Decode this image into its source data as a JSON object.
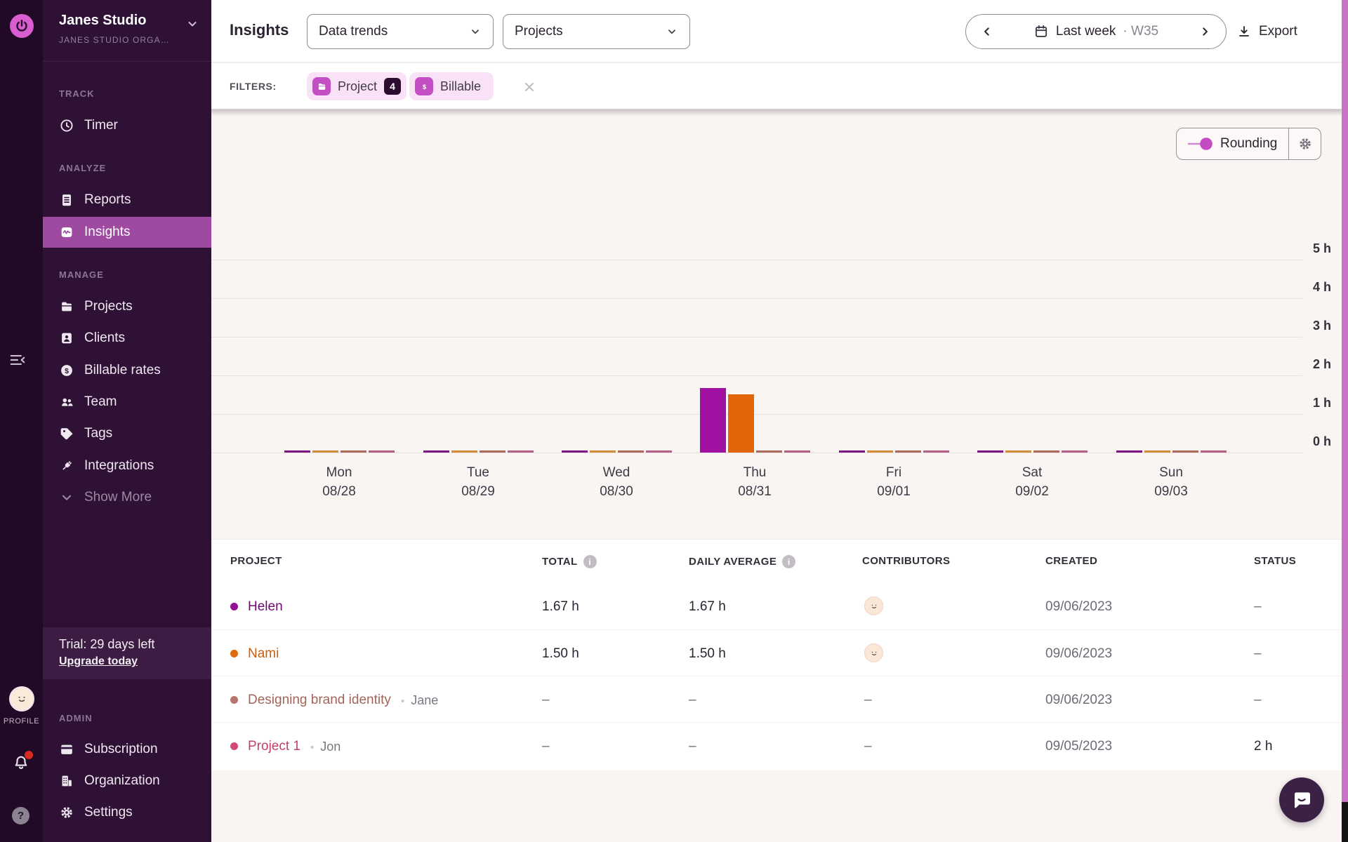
{
  "rail": {
    "profile_label": "PROFILE"
  },
  "sidebar": {
    "workspace_name": "Janes Studio",
    "workspace_org": "JANES STUDIO ORGA…",
    "sections": [
      {
        "label": "TRACK",
        "items": [
          {
            "label": "Timer"
          }
        ]
      },
      {
        "label": "ANALYZE",
        "items": [
          {
            "label": "Reports"
          },
          {
            "label": "Insights"
          }
        ]
      },
      {
        "label": "MANAGE",
        "items": [
          {
            "label": "Projects"
          },
          {
            "label": "Clients"
          },
          {
            "label": "Billable rates"
          },
          {
            "label": "Team"
          },
          {
            "label": "Tags"
          },
          {
            "label": "Integrations"
          },
          {
            "label": "Show More"
          }
        ]
      }
    ],
    "trial": {
      "text": "Trial: 29 days left",
      "link": "Upgrade today"
    },
    "admin": {
      "label": "ADMIN",
      "items": [
        {
          "label": "Subscription"
        },
        {
          "label": "Organization"
        },
        {
          "label": "Settings"
        }
      ]
    }
  },
  "header": {
    "title": "Insights",
    "view_dropdown": "Data trends",
    "grouping_dropdown": "Projects",
    "date_range_label": "Last week",
    "week_label": "· W35",
    "export_label": "Export"
  },
  "filters": {
    "label": "FILTERS:",
    "chips": [
      {
        "label": "Project",
        "count": "4"
      },
      {
        "label": "Billable"
      }
    ]
  },
  "chart_controls": {
    "rounding_label": "Rounding",
    "rounding_enabled": true
  },
  "chart_data": {
    "type": "bar",
    "unit": "h",
    "categories": [
      {
        "day": "Mon",
        "date": "08/28"
      },
      {
        "day": "Tue",
        "date": "08/29"
      },
      {
        "day": "Wed",
        "date": "08/30"
      },
      {
        "day": "Thu",
        "date": "08/31"
      },
      {
        "day": "Fri",
        "date": "09/01"
      },
      {
        "day": "Sat",
        "date": "09/02"
      },
      {
        "day": "Sun",
        "date": "09/03"
      }
    ],
    "series": [
      {
        "name": "Helen",
        "color": "#a011a1",
        "stub_color": "#7c1581",
        "values": [
          0,
          0,
          0,
          1.67,
          0,
          0,
          0
        ]
      },
      {
        "name": "Nami",
        "color": "#e2650a",
        "stub_color": "#d18a38",
        "values": [
          0,
          0,
          0,
          1.5,
          0,
          0,
          0
        ]
      },
      {
        "name": "Designing brand identity",
        "color": "#ab6a59",
        "stub_color": "#ab6a59",
        "values": [
          0,
          0,
          0,
          0,
          0,
          0,
          0
        ]
      },
      {
        "name": "Project 1",
        "color": "#b15f85",
        "stub_color": "#b15f85",
        "values": [
          0,
          0,
          0,
          0,
          0,
          0,
          0
        ]
      }
    ],
    "yticks": [
      "0 h",
      "1 h",
      "2 h",
      "3 h",
      "4 h",
      "5 h"
    ],
    "ylim": [
      0,
      5
    ],
    "grid": true,
    "legend": false
  },
  "table": {
    "columns": [
      {
        "label": "PROJECT"
      },
      {
        "label": "TOTAL",
        "info": true
      },
      {
        "label": "DAILY AVERAGE",
        "info": true
      },
      {
        "label": "CONTRIBUTORS"
      },
      {
        "label": "CREATED"
      },
      {
        "label": "STATUS"
      }
    ],
    "rows": [
      {
        "name": "Helen",
        "dot_color": "#930e93",
        "name_color": "#6b0b6e",
        "member": "",
        "total": "1.67 h",
        "daily_average": "1.67 h",
        "has_contributor_avatar": true,
        "created": "09/06/2023",
        "status": "–"
      },
      {
        "name": "Nami",
        "dot_color": "#e0690b",
        "name_color": "#c75f10",
        "member": "",
        "total": "1.50 h",
        "daily_average": "1.50 h",
        "has_contributor_avatar": true,
        "created": "09/06/2023",
        "status": "–"
      },
      {
        "name": "Designing brand identity",
        "dot_color": "#b5756b",
        "name_color": "#a26557",
        "member": "Jane",
        "total": "–",
        "daily_average": "–",
        "has_contributor_avatar": false,
        "created": "09/06/2023",
        "status": "–"
      },
      {
        "name": "Project 1",
        "dot_color": "#d14a77",
        "name_color": "#bf3f70",
        "member": "Jon",
        "total": "–",
        "daily_average": "–",
        "has_contributor_avatar": false,
        "created": "09/05/2023",
        "status": "2 h"
      }
    ]
  }
}
